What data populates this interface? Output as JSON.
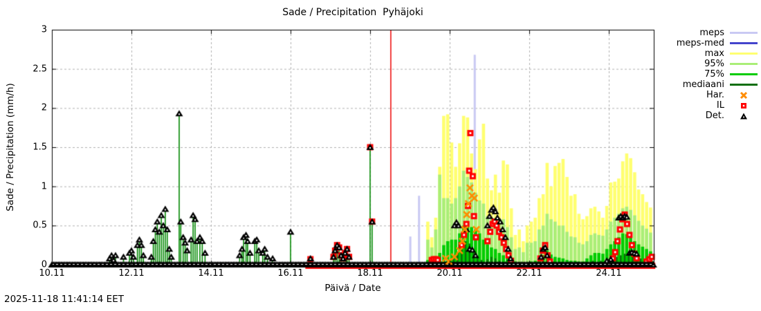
{
  "title": "Sade / Precipitation  Pyhäjoki",
  "y_axis": {
    "label": "Sade / Precipitation (mm/h)",
    "ticks": [
      "0",
      "0.5",
      "1",
      "1.5",
      "2",
      "2.5",
      "3"
    ],
    "tick_values": [
      0,
      0.5,
      1,
      1.5,
      2,
      2.5,
      3
    ],
    "range": [
      0,
      3
    ]
  },
  "x_axis": {
    "label": "Päivä / Date",
    "ticks": [
      "10.11",
      "12.11",
      "14.11",
      "16.11",
      "18.11",
      "20.11",
      "22.11",
      "24.11"
    ],
    "tick_days": [
      10,
      12,
      14,
      16,
      18,
      20,
      22,
      24
    ],
    "range": [
      10,
      25.13
    ]
  },
  "timestamp": "2025-11-18 11:41:14 EET",
  "legend": [
    {
      "label": "meps",
      "type": "line",
      "color": "#c9c9f3"
    },
    {
      "label": "meps-med",
      "type": "line",
      "color": "#4444cc"
    },
    {
      "label": "max",
      "type": "line",
      "color": "#ffff70"
    },
    {
      "label": "95%",
      "type": "line",
      "color": "#aaee77"
    },
    {
      "label": "75%",
      "type": "line",
      "color": "#00cc00"
    },
    {
      "label": "mediaani",
      "type": "line",
      "color": "#0b6e0b"
    },
    {
      "label": "Har.",
      "type": "x",
      "color": "#ff8c00"
    },
    {
      "label": "IL",
      "type": "square",
      "color": "#ff0000"
    },
    {
      "label": "Det.",
      "type": "triangle",
      "color": "#000000"
    }
  ],
  "colors": {
    "meps": "#c9c9f3",
    "meps_med": "#4444cc",
    "max": "#ffff70",
    "p95": "#aaee77",
    "p75": "#00cc00",
    "median": "#0b6e0b",
    "har": "#ff8c00",
    "il": "#ff0000",
    "det": "#000000",
    "stem": "#008800",
    "now_line": "#ee0000",
    "grid": "#b0b0b0"
  },
  "chart_data": {
    "type": "bar",
    "title": "Sade / Precipitation  Pyhäjoki",
    "xlabel": "Päivä / Date",
    "ylabel": "Sade / Precipitation (mm/h)",
    "ylim": [
      0,
      3
    ],
    "xlim_days_november": [
      10,
      25.13
    ],
    "grid": true,
    "legend_position": "right-outside",
    "current_time_day": 18.52,
    "meps_spikes": [
      [
        19.01,
        0.36
      ],
      [
        19.23,
        0.88
      ],
      [
        20.63,
        2.68
      ]
    ],
    "det_zero_range": [
      10.0,
      25.12
    ],
    "il_zero_range": [
      16.45,
      25.12
    ],
    "det_points": [
      [
        11.45,
        0.08
      ],
      [
        11.5,
        0.12
      ],
      [
        11.55,
        0.06
      ],
      [
        11.6,
        0.12
      ],
      [
        11.8,
        0.1
      ],
      [
        11.95,
        0.15
      ],
      [
        12.0,
        0.18
      ],
      [
        12.05,
        0.1
      ],
      [
        12.15,
        0.25
      ],
      [
        12.2,
        0.32
      ],
      [
        12.25,
        0.25
      ],
      [
        12.3,
        0.12
      ],
      [
        12.5,
        0.1
      ],
      [
        12.55,
        0.3
      ],
      [
        12.6,
        0.45
      ],
      [
        12.65,
        0.55
      ],
      [
        12.7,
        0.42
      ],
      [
        12.75,
        0.63
      ],
      [
        12.8,
        0.5
      ],
      [
        12.85,
        0.71
      ],
      [
        12.9,
        0.45
      ],
      [
        12.95,
        0.2
      ],
      [
        13.0,
        0.1
      ],
      [
        13.2,
        1.93
      ],
      [
        13.24,
        0.55
      ],
      [
        13.3,
        0.35
      ],
      [
        13.35,
        0.28
      ],
      [
        13.4,
        0.18
      ],
      [
        13.5,
        0.32
      ],
      [
        13.55,
        0.63
      ],
      [
        13.6,
        0.58
      ],
      [
        13.65,
        0.3
      ],
      [
        13.72,
        0.35
      ],
      [
        13.78,
        0.3
      ],
      [
        13.85,
        0.15
      ],
      [
        14.72,
        0.12
      ],
      [
        14.78,
        0.2
      ],
      [
        14.82,
        0.35
      ],
      [
        14.88,
        0.38
      ],
      [
        14.92,
        0.3
      ],
      [
        14.98,
        0.15
      ],
      [
        15.1,
        0.3
      ],
      [
        15.15,
        0.32
      ],
      [
        15.2,
        0.18
      ],
      [
        15.3,
        0.15
      ],
      [
        15.35,
        0.2
      ],
      [
        15.42,
        0.1
      ],
      [
        15.55,
        0.08
      ],
      [
        16.0,
        0.42
      ],
      [
        16.5,
        0.08
      ],
      [
        17.08,
        0.1
      ],
      [
        17.12,
        0.18
      ],
      [
        17.17,
        0.25
      ],
      [
        17.22,
        0.22
      ],
      [
        17.27,
        0.12
      ],
      [
        17.32,
        0.08
      ],
      [
        17.37,
        0.15
      ],
      [
        17.42,
        0.2
      ],
      [
        17.47,
        0.1
      ],
      [
        18.0,
        1.5
      ],
      [
        18.05,
        0.55
      ],
      [
        20.12,
        0.5
      ],
      [
        20.17,
        0.54
      ],
      [
        20.22,
        0.5
      ],
      [
        20.42,
        0.45
      ],
      [
        20.5,
        0.2
      ],
      [
        20.57,
        0.19
      ],
      [
        20.65,
        0.12
      ],
      [
        20.95,
        0.5
      ],
      [
        21.0,
        0.62
      ],
      [
        21.05,
        0.7
      ],
      [
        21.1,
        0.73
      ],
      [
        21.15,
        0.68
      ],
      [
        21.2,
        0.6
      ],
      [
        21.27,
        0.55
      ],
      [
        21.33,
        0.45
      ],
      [
        21.4,
        0.35
      ],
      [
        21.47,
        0.2
      ],
      [
        21.53,
        0.08
      ],
      [
        22.3,
        0.1
      ],
      [
        22.35,
        0.2
      ],
      [
        22.4,
        0.22
      ],
      [
        22.45,
        0.12
      ],
      [
        23.95,
        0.05
      ],
      [
        24.05,
        0.07
      ],
      [
        24.25,
        0.6
      ],
      [
        24.3,
        0.62
      ],
      [
        24.35,
        0.6
      ],
      [
        24.4,
        0.62
      ],
      [
        24.45,
        0.61
      ],
      [
        24.52,
        0.15
      ],
      [
        24.58,
        0.16
      ],
      [
        24.64,
        0.15
      ],
      [
        24.7,
        0.14
      ]
    ],
    "il_points": [
      [
        16.5,
        0.07
      ],
      [
        17.08,
        0.1
      ],
      [
        17.12,
        0.18
      ],
      [
        17.17,
        0.25
      ],
      [
        17.22,
        0.22
      ],
      [
        17.27,
        0.12
      ],
      [
        17.32,
        0.08
      ],
      [
        17.37,
        0.15
      ],
      [
        17.42,
        0.2
      ],
      [
        17.47,
        0.1
      ],
      [
        18.0,
        1.5
      ],
      [
        18.05,
        0.55
      ],
      [
        19.55,
        0.06
      ],
      [
        19.6,
        0.07
      ],
      [
        19.65,
        0.07
      ],
      [
        19.7,
        0.06
      ],
      [
        20.3,
        0.25
      ],
      [
        20.36,
        0.38
      ],
      [
        20.42,
        0.52
      ],
      [
        20.46,
        0.75
      ],
      [
        20.49,
        1.2
      ],
      [
        20.52,
        1.68
      ],
      [
        20.58,
        1.13
      ],
      [
        20.61,
        0.62
      ],
      [
        20.66,
        0.35
      ],
      [
        20.95,
        0.3
      ],
      [
        21.02,
        0.42
      ],
      [
        21.08,
        0.52
      ],
      [
        21.13,
        0.55
      ],
      [
        21.18,
        0.5
      ],
      [
        21.24,
        0.42
      ],
      [
        21.3,
        0.35
      ],
      [
        21.36,
        0.28
      ],
      [
        21.42,
        0.2
      ],
      [
        21.48,
        0.12
      ],
      [
        21.54,
        0.05
      ],
      [
        22.28,
        0.08
      ],
      [
        22.34,
        0.18
      ],
      [
        22.4,
        0.25
      ],
      [
        22.46,
        0.12
      ],
      [
        22.52,
        0.04
      ],
      [
        24.1,
        0.08
      ],
      [
        24.16,
        0.16
      ],
      [
        24.22,
        0.3
      ],
      [
        24.28,
        0.45
      ],
      [
        24.34,
        0.58
      ],
      [
        24.4,
        0.64
      ],
      [
        24.46,
        0.52
      ],
      [
        24.52,
        0.38
      ],
      [
        24.58,
        0.25
      ],
      [
        24.64,
        0.14
      ],
      [
        24.7,
        0.08
      ],
      [
        24.95,
        0.04
      ],
      [
        25.02,
        0.07
      ],
      [
        25.08,
        0.1
      ]
    ],
    "har_points": [
      [
        19.9,
        0.08
      ],
      [
        19.98,
        0.04
      ],
      [
        20.12,
        0.1
      ],
      [
        20.25,
        0.18
      ],
      [
        20.32,
        0.3
      ],
      [
        20.38,
        0.45
      ],
      [
        20.43,
        0.64
      ],
      [
        20.47,
        0.78
      ],
      [
        20.51,
        0.98
      ],
      [
        20.56,
        0.88
      ],
      [
        20.62,
        0.85
      ],
      [
        20.67,
        0.45
      ]
    ],
    "median_points": [
      [
        19.9,
        0.04
      ],
      [
        20.0,
        0.06
      ],
      [
        20.1,
        0.1
      ],
      [
        20.2,
        0.16
      ],
      [
        20.3,
        0.22
      ],
      [
        20.4,
        0.3
      ],
      [
        20.5,
        0.27
      ],
      [
        20.6,
        0.18
      ],
      [
        20.7,
        0.1
      ],
      [
        20.8,
        0.06
      ],
      [
        20.95,
        0.07
      ],
      [
        21.05,
        0.1
      ],
      [
        21.15,
        0.08
      ],
      [
        21.25,
        0.05
      ],
      [
        22.35,
        0.05
      ],
      [
        22.45,
        0.04
      ],
      [
        23.6,
        0.05
      ],
      [
        23.8,
        0.05
      ],
      [
        24.0,
        0.07
      ],
      [
        24.1,
        0.09
      ],
      [
        24.2,
        0.1
      ],
      [
        24.3,
        0.12
      ],
      [
        24.4,
        0.14
      ],
      [
        24.5,
        0.13
      ],
      [
        24.6,
        0.11
      ],
      [
        24.7,
        0.1
      ],
      [
        24.8,
        0.08
      ],
      [
        24.9,
        0.07
      ],
      [
        25.0,
        0.06
      ],
      [
        25.1,
        0.05
      ]
    ],
    "forecast_bars": {
      "columns": [
        "day",
        "max",
        "p95",
        "p75"
      ],
      "rows": [
        [
          19.45,
          0.55,
          0.32,
          0.06
        ],
        [
          19.55,
          0.35,
          0.22,
          0.06
        ],
        [
          19.65,
          0.6,
          0.45,
          0.1
        ],
        [
          19.75,
          1.25,
          1.15,
          0.15
        ],
        [
          19.85,
          1.9,
          0.85,
          0.25
        ],
        [
          19.95,
          1.92,
          0.85,
          0.3
        ],
        [
          20.05,
          1.56,
          0.78,
          0.32
        ],
        [
          20.15,
          1.25,
          0.85,
          0.32
        ],
        [
          20.25,
          1.55,
          1.0,
          0.4
        ],
        [
          20.35,
          1.9,
          1.2,
          0.5
        ],
        [
          20.45,
          1.88,
          1.12,
          0.55
        ],
        [
          20.55,
          1.42,
          1.05,
          0.48
        ],
        [
          20.65,
          1.22,
          0.92,
          0.45
        ],
        [
          20.75,
          1.6,
          0.82,
          0.4
        ],
        [
          20.85,
          1.8,
          0.78,
          0.32
        ],
        [
          20.95,
          1.1,
          0.62,
          0.26
        ],
        [
          21.05,
          0.95,
          0.6,
          0.22
        ],
        [
          21.15,
          1.15,
          0.6,
          0.2
        ],
        [
          21.25,
          0.92,
          0.52,
          0.15
        ],
        [
          21.35,
          1.33,
          0.58,
          0.12
        ],
        [
          21.45,
          1.28,
          0.48,
          0.1
        ],
        [
          21.55,
          0.72,
          0.35,
          0.06
        ],
        [
          21.65,
          0.38,
          0.2,
          0.04
        ],
        [
          21.75,
          0.45,
          0.22,
          0.03
        ],
        [
          21.85,
          0.3,
          0.16,
          0.02
        ],
        [
          21.95,
          0.5,
          0.28,
          0.03
        ],
        [
          22.05,
          0.55,
          0.28,
          0.04
        ],
        [
          22.15,
          0.6,
          0.3,
          0.05
        ],
        [
          22.25,
          0.85,
          0.45,
          0.1
        ],
        [
          22.35,
          0.9,
          0.5,
          0.12
        ],
        [
          22.45,
          1.3,
          0.65,
          0.18
        ],
        [
          22.55,
          1.0,
          0.58,
          0.13
        ],
        [
          22.65,
          1.26,
          0.55,
          0.1
        ],
        [
          22.75,
          1.3,
          0.5,
          0.09
        ],
        [
          22.85,
          1.35,
          0.5,
          0.08
        ],
        [
          22.95,
          1.12,
          0.42,
          0.06
        ],
        [
          23.05,
          0.88,
          0.36,
          0.05
        ],
        [
          23.15,
          0.9,
          0.35,
          0.05
        ],
        [
          23.25,
          0.65,
          0.28,
          0.04
        ],
        [
          23.35,
          0.58,
          0.26,
          0.04
        ],
        [
          23.45,
          0.62,
          0.3,
          0.08
        ],
        [
          23.55,
          0.72,
          0.38,
          0.12
        ],
        [
          23.65,
          0.74,
          0.4,
          0.15
        ],
        [
          23.75,
          0.68,
          0.38,
          0.15
        ],
        [
          23.85,
          0.6,
          0.37,
          0.14
        ],
        [
          23.95,
          0.75,
          0.45,
          0.2
        ],
        [
          24.05,
          1.05,
          0.55,
          0.26
        ],
        [
          24.15,
          1.06,
          0.6,
          0.3
        ],
        [
          24.25,
          1.1,
          0.65,
          0.35
        ],
        [
          24.35,
          1.32,
          0.72,
          0.4
        ],
        [
          24.45,
          1.42,
          0.74,
          0.39
        ],
        [
          24.55,
          1.36,
          0.7,
          0.36
        ],
        [
          24.65,
          1.18,
          0.63,
          0.3
        ],
        [
          24.75,
          0.96,
          0.56,
          0.26
        ],
        [
          24.85,
          0.9,
          0.5,
          0.23
        ],
        [
          24.95,
          0.8,
          0.46,
          0.2
        ],
        [
          25.05,
          0.73,
          0.41,
          0.17
        ]
      ]
    }
  }
}
